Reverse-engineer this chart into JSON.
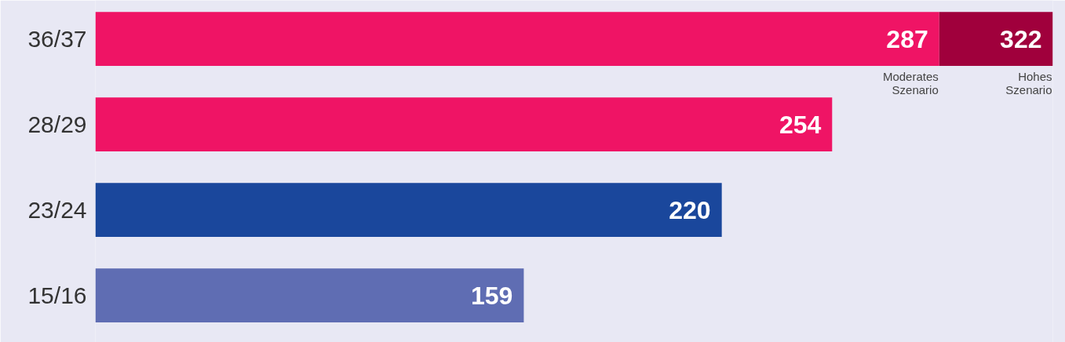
{
  "chart_data": {
    "type": "bar",
    "orientation": "horizontal",
    "stacked": true,
    "categories": [
      "36/37",
      "28/29",
      "23/24",
      "15/16"
    ],
    "series": [
      {
        "name": "Moderates Szenario",
        "colors": [
          "#ef1465",
          "#ef1465",
          "#1a479c",
          "#5f6db3"
        ],
        "values": [
          287,
          254,
          220,
          159
        ],
        "value_labels": [
          "287",
          "254",
          "220",
          "159"
        ]
      },
      {
        "name": "Hohes Szenario",
        "color": "#a0003c",
        "values": [
          35,
          null,
          null,
          null
        ]
      }
    ],
    "totals": [
      "322",
      null,
      null,
      null
    ],
    "xlim": [
      27,
      322
    ],
    "tick_labels": "y",
    "grid": false
  }
}
